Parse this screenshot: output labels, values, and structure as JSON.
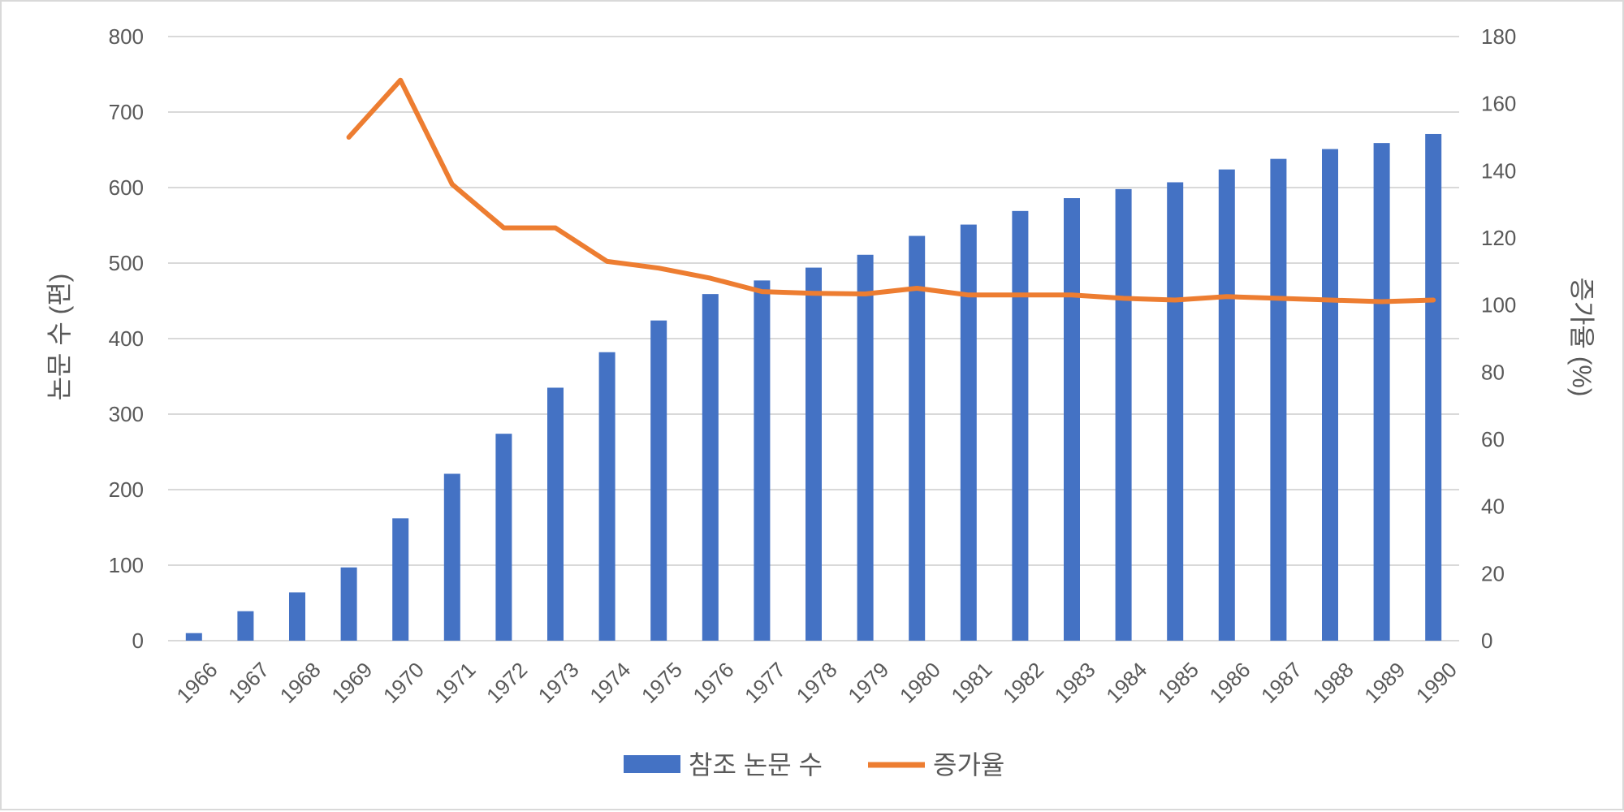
{
  "chart_data": {
    "type": "bar",
    "categories": [
      "1966",
      "1967",
      "1968",
      "1969",
      "1970",
      "1971",
      "1972",
      "1973",
      "1974",
      "1975",
      "1976",
      "1977",
      "1978",
      "1979",
      "1980",
      "1981",
      "1982",
      "1983",
      "1984",
      "1985",
      "1986",
      "1987",
      "1988",
      "1989",
      "1990"
    ],
    "series": [
      {
        "name": "참조 논문 수",
        "type": "bar",
        "axis": "left",
        "color": "#4472C4",
        "values": [
          10,
          39,
          64,
          97,
          162,
          221,
          274,
          335,
          382,
          424,
          459,
          477,
          494,
          511,
          536,
          551,
          569,
          586,
          598,
          607,
          624,
          638,
          651,
          659,
          671
        ]
      },
      {
        "name": "증가율",
        "type": "line",
        "axis": "right",
        "color": "#ED7D31",
        "values": [
          null,
          null,
          null,
          150,
          167,
          136,
          123,
          123,
          113,
          111,
          108,
          104,
          103.5,
          103.3,
          105,
          103,
          103,
          103,
          102,
          101.5,
          102.5,
          102,
          101.5,
          101,
          101.5
        ]
      }
    ],
    "ylabel": "논문 수 (편)",
    "y2label": "증가율 (%)",
    "ylim": [
      0,
      800
    ],
    "y2lim": [
      0,
      180
    ],
    "yticks": [
      "0",
      "100",
      "200",
      "300",
      "400",
      "500",
      "600",
      "700",
      "800"
    ],
    "y2ticks": [
      "0",
      "20",
      "40",
      "60",
      "80",
      "100",
      "120",
      "140",
      "160",
      "180"
    ],
    "grid": true,
    "legend_position": "bottom"
  }
}
